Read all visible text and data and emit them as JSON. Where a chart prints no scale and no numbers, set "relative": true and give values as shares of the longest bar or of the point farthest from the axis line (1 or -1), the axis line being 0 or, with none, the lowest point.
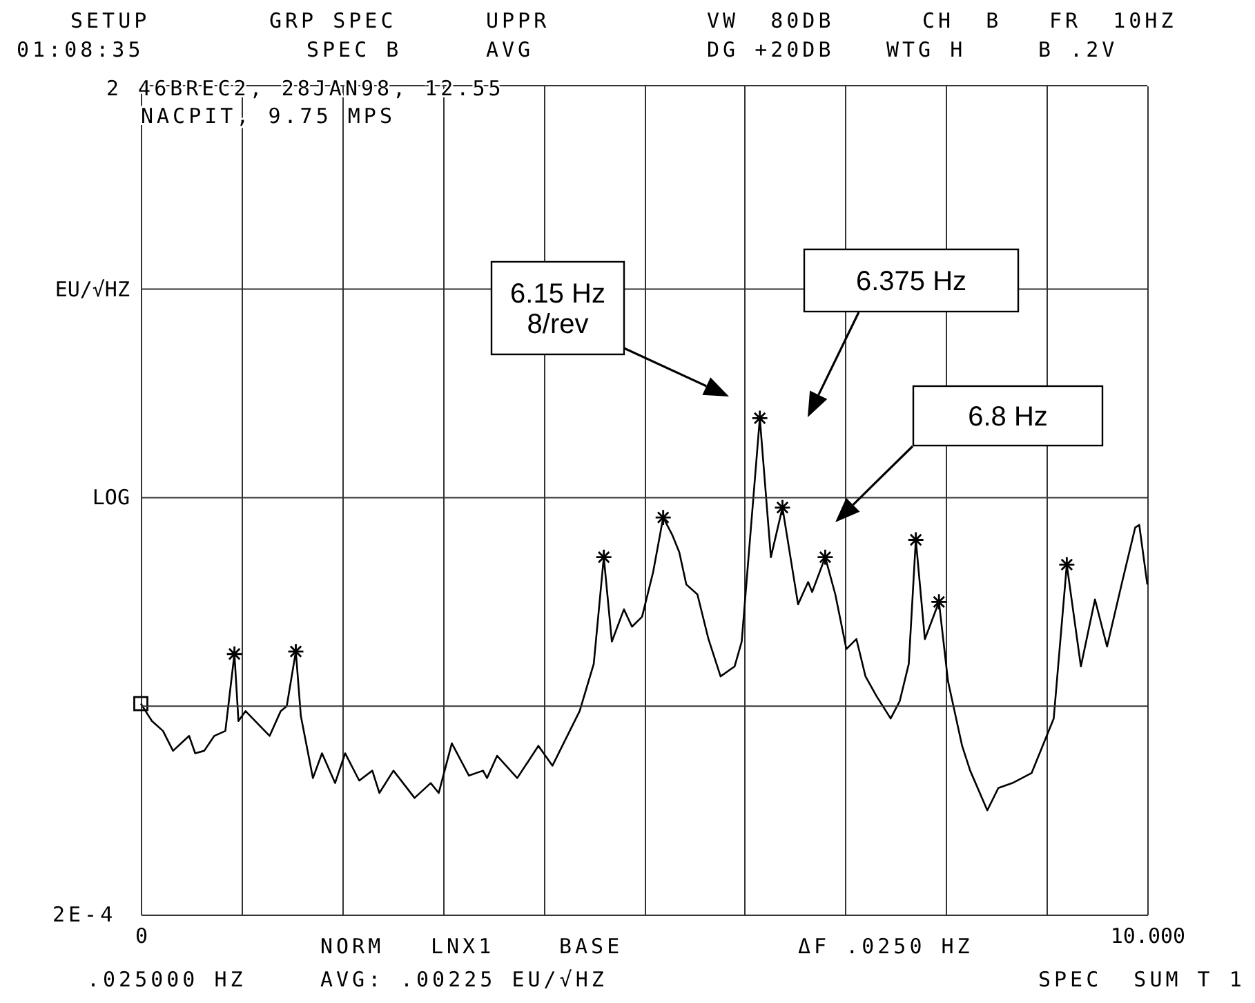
{
  "chart_data": {
    "type": "line",
    "relative": true,
    "grid": "x",
    "xlim": [
      0,
      10
    ],
    "xticks": [
      {
        "value": 0,
        "label": "0"
      },
      {
        "value": 1,
        "label": null
      },
      {
        "value": 2,
        "label": null
      },
      {
        "value": 3,
        "label": null
      },
      {
        "value": 4,
        "label": null
      },
      {
        "value": 5,
        "label": null
      },
      {
        "value": 6,
        "label": null
      },
      {
        "value": 7,
        "label": null
      },
      {
        "value": 8,
        "label": null
      },
      {
        "value": 9,
        "label": null
      },
      {
        "value": 10,
        "label": "10.000"
      }
    ],
    "ref_lines": [
      {
        "axis": "y",
        "value": 0.42,
        "label": null
      },
      {
        "axis": "y",
        "value": 0.84,
        "label": "LOG"
      },
      {
        "axis": "y",
        "value": 1.26,
        "label": "EU/√HZ"
      },
      {
        "axis": "y",
        "value": 1.67,
        "label": null
      }
    ],
    "series": [
      {
        "type": "line",
        "color": "#000000",
        "marker": "none",
        "x": [
          0,
          0.11,
          0.22,
          0.32,
          0.48,
          0.54,
          0.63,
          0.73,
          0.84,
          0.93,
          0.97,
          1.04,
          1.28,
          1.39,
          1.45,
          1.54,
          1.59,
          1.71,
          1.8,
          1.93,
          2.03,
          2.17,
          2.3,
          2.37,
          2.51,
          2.72,
          2.88,
          2.96,
          3.09,
          3.26,
          3.4,
          3.44,
          3.54,
          3.74,
          3.95,
          4.09,
          4.36,
          4.5,
          4.6,
          4.68,
          4.8,
          4.88,
          4.98,
          5.09,
          5.19,
          5.28,
          5.35,
          5.42,
          5.53,
          5.64,
          5.76,
          5.9,
          5.97,
          6.15,
          6.26,
          6.375,
          6.53,
          6.63,
          6.67,
          6.8,
          6.9,
          7.01,
          7.11,
          7.2,
          7.31,
          7.45,
          7.54,
          7.63,
          7.7,
          7.79,
          7.93,
          8.02,
          8.16,
          8.24,
          8.41,
          8.52,
          8.66,
          8.85,
          8.96,
          9.07,
          9.2,
          9.34,
          9.48,
          9.6,
          9.75,
          9.88,
          9.92,
          10
        ],
        "values": [
          0.425,
          0.39,
          0.37,
          0.33,
          0.36,
          0.325,
          0.33,
          0.36,
          0.37,
          0.525,
          0.39,
          0.41,
          0.36,
          0.41,
          0.42,
          0.53,
          0.4,
          0.275,
          0.325,
          0.265,
          0.325,
          0.27,
          0.29,
          0.245,
          0.29,
          0.235,
          0.265,
          0.245,
          0.345,
          0.28,
          0.29,
          0.275,
          0.32,
          0.275,
          0.34,
          0.3,
          0.41,
          0.505,
          0.72,
          0.55,
          0.615,
          0.58,
          0.6,
          0.69,
          0.8,
          0.765,
          0.73,
          0.665,
          0.645,
          0.555,
          0.48,
          0.5,
          0.55,
          1,
          0.72,
          0.82,
          0.625,
          0.67,
          0.65,
          0.72,
          0.645,
          0.535,
          0.555,
          0.48,
          0.44,
          0.395,
          0.43,
          0.505,
          0.755,
          0.555,
          0.63,
          0.47,
          0.34,
          0.29,
          0.21,
          0.255,
          0.265,
          0.285,
          0.34,
          0.395,
          0.705,
          0.5,
          0.635,
          0.54,
          0.67,
          0.78,
          0.785,
          0.665
        ]
      },
      {
        "type": "scatter",
        "color": "#000000",
        "marker": "cross",
        "x": [
          0.93,
          1.54,
          4.6,
          5.19,
          6.15,
          6.375,
          6.8,
          7.7,
          7.93,
          9.2
        ],
        "values": [
          0.525,
          0.53,
          0.72,
          0.8,
          1,
          0.82,
          0.72,
          0.755,
          0.63,
          0.705
        ]
      },
      {
        "type": "scatter",
        "color": "#000000",
        "marker": "square",
        "x": [
          0
        ],
        "values": [
          0.425
        ]
      }
    ],
    "annotations": [
      "SETUP",
      "GRP SPEC",
      "UPPR",
      "VW  80DB",
      "CH  B",
      "FR  10HZ",
      "01:08:35",
      "SPEC B",
      "AVG",
      "DG +20DB",
      "WTG H",
      "B .2V",
      "2 46BREC2, 28JAN98, 12.55",
      "NACPIT, 9.75 MPS",
      "NORM",
      "LNX1",
      "BASE",
      "ΔF .0250 HZ",
      ".025000 HZ",
      "AVG:",
      ".00225 EU/√HZ",
      "SPEC  SUM T 1",
      "2E-4",
      "6.15 Hz\n8/rev",
      "6.375 Hz",
      "6.8 Hz"
    ]
  }
}
